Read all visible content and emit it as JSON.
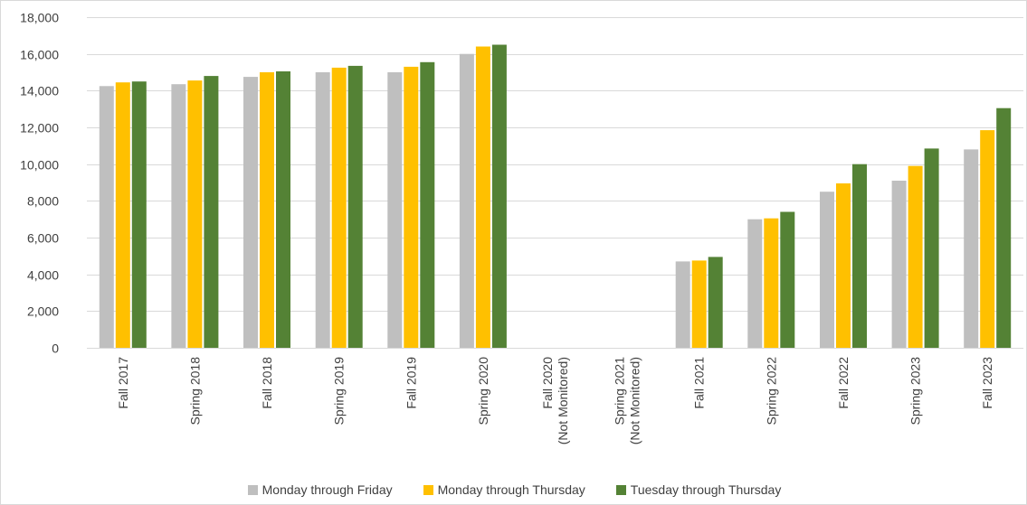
{
  "chart_data": {
    "type": "bar",
    "categories": [
      [
        "Fall 2017"
      ],
      [
        "Spring 2018"
      ],
      [
        "Fall 2018"
      ],
      [
        "Spring 2019"
      ],
      [
        "Fall 2019"
      ],
      [
        "Spring 2020"
      ],
      [
        "Fall 2020",
        "(Not Monitored)"
      ],
      [
        "Spring 2021",
        "(Not Monitored)"
      ],
      [
        "Fall 2021"
      ],
      [
        "Spring 2022"
      ],
      [
        "Fall 2022"
      ],
      [
        "Spring 2023"
      ],
      [
        "Fall 2023"
      ]
    ],
    "series": [
      {
        "name": "Monday through Friday",
        "color": "#bfbfbf",
        "values": [
          14250,
          14350,
          14750,
          15000,
          15000,
          16000,
          null,
          null,
          4700,
          7000,
          8500,
          9100,
          10800
        ]
      },
      {
        "name": "Monday through Thursday",
        "color": "#ffc000",
        "values": [
          14450,
          14550,
          15000,
          15250,
          15300,
          16400,
          null,
          null,
          4750,
          7050,
          8950,
          9900,
          11850
        ]
      },
      {
        "name": "Tuesday through Thursday",
        "color": "#548235",
        "values": [
          14500,
          14800,
          15050,
          15350,
          15550,
          16500,
          null,
          null,
          4950,
          7400,
          10000,
          10850,
          13050
        ]
      }
    ],
    "ylim": [
      0,
      18000
    ],
    "yticks": [
      0,
      2000,
      4000,
      6000,
      8000,
      10000,
      12000,
      14000,
      16000,
      18000
    ],
    "grid": true,
    "legend_position": "bottom",
    "title": "",
    "xlabel": "",
    "ylabel": ""
  }
}
